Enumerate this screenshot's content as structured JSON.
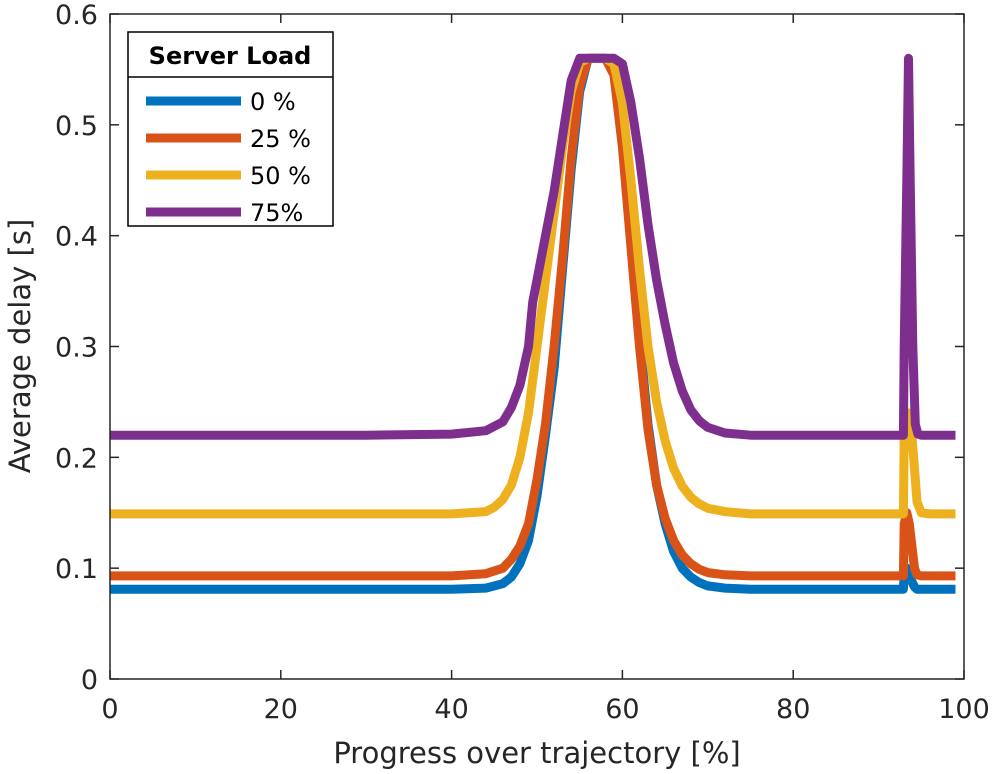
{
  "chart_data": {
    "type": "line",
    "title": "",
    "xlabel": "Progress over trajectory [%]",
    "ylabel": "Average delay [s]",
    "xlim": [
      0,
      100
    ],
    "ylim": [
      0,
      0.6
    ],
    "xticks": [
      0,
      20,
      40,
      60,
      80,
      100
    ],
    "xtick_labels": [
      "0",
      "20",
      "40",
      "60",
      "80",
      "100"
    ],
    "yticks": [
      0,
      0.1,
      0.2,
      0.3,
      0.4,
      0.5,
      0.6
    ],
    "ytick_labels": [
      "0",
      "0.1",
      "0.2",
      "0.3",
      "0.4",
      "0.5",
      "0.6"
    ],
    "grid": false,
    "legend": {
      "title": "Server Load",
      "placement": "top-left"
    },
    "series": [
      {
        "name": "0 %",
        "color": "#0072BD",
        "x": [
          0,
          10,
          20,
          30,
          40,
          44,
          46,
          47,
          48,
          49,
          50,
          51,
          52,
          53,
          54,
          55,
          56,
          57,
          58,
          59,
          60,
          61,
          62,
          63,
          64,
          65,
          66,
          67,
          68,
          69,
          70,
          72,
          75,
          80,
          85,
          90,
          92.9,
          93.0,
          93.3,
          93.6,
          93.9,
          94.2,
          94.5,
          95,
          96,
          97,
          98,
          99
        ],
        "y": [
          0.081,
          0.081,
          0.081,
          0.081,
          0.081,
          0.082,
          0.086,
          0.092,
          0.104,
          0.125,
          0.165,
          0.22,
          0.28,
          0.37,
          0.46,
          0.53,
          0.56,
          0.56,
          0.56,
          0.55,
          0.49,
          0.4,
          0.31,
          0.23,
          0.175,
          0.14,
          0.115,
          0.1,
          0.092,
          0.087,
          0.084,
          0.082,
          0.081,
          0.081,
          0.081,
          0.081,
          0.081,
          0.095,
          0.1,
          0.095,
          0.088,
          0.083,
          0.081,
          0.081,
          0.081,
          0.081,
          0.081,
          0.081
        ]
      },
      {
        "name": "25 %",
        "color": "#D95319",
        "x": [
          0,
          10,
          20,
          30,
          40,
          44,
          46,
          47,
          48,
          49,
          50,
          51,
          52,
          53,
          54,
          55,
          56,
          57,
          58,
          59,
          60,
          61,
          62,
          63,
          64,
          65,
          66,
          67,
          68,
          69,
          70,
          72,
          75,
          80,
          85,
          90,
          92.9,
          93.0,
          93.3,
          93.6,
          93.9,
          94.2,
          94.5,
          95,
          96,
          97,
          98,
          99
        ],
        "y": [
          0.093,
          0.093,
          0.093,
          0.093,
          0.093,
          0.095,
          0.1,
          0.108,
          0.12,
          0.14,
          0.18,
          0.23,
          0.3,
          0.38,
          0.47,
          0.535,
          0.56,
          0.56,
          0.56,
          0.545,
          0.48,
          0.39,
          0.3,
          0.225,
          0.175,
          0.145,
          0.125,
          0.112,
          0.104,
          0.099,
          0.096,
          0.094,
          0.093,
          0.093,
          0.093,
          0.093,
          0.093,
          0.14,
          0.15,
          0.14,
          0.12,
          0.1,
          0.094,
          0.093,
          0.093,
          0.093,
          0.093,
          0.093
        ]
      },
      {
        "name": "50 %",
        "color": "#EDB120",
        "x": [
          0,
          10,
          20,
          30,
          40,
          44,
          45,
          46,
          47,
          48,
          49,
          50,
          51,
          52,
          53,
          54,
          55,
          56,
          57,
          58,
          59,
          60,
          61,
          62,
          63,
          64,
          65,
          66,
          67,
          68,
          69,
          70,
          72,
          75,
          80,
          85,
          90,
          92.9,
          93.0,
          93.3,
          93.6,
          93.9,
          94.2,
          94.5,
          95,
          96,
          97,
          98,
          99
        ],
        "y": [
          0.149,
          0.149,
          0.149,
          0.149,
          0.149,
          0.151,
          0.155,
          0.162,
          0.175,
          0.2,
          0.24,
          0.3,
          0.36,
          0.42,
          0.48,
          0.53,
          0.556,
          0.56,
          0.56,
          0.56,
          0.555,
          0.52,
          0.45,
          0.37,
          0.3,
          0.25,
          0.215,
          0.19,
          0.174,
          0.164,
          0.158,
          0.154,
          0.151,
          0.149,
          0.149,
          0.149,
          0.149,
          0.149,
          0.22,
          0.24,
          0.24,
          0.22,
          0.19,
          0.16,
          0.15,
          0.149,
          0.149,
          0.149,
          0.149
        ]
      },
      {
        "name": "75%",
        "color": "#7E2F8E",
        "x": [
          0,
          10,
          20,
          30,
          40,
          44,
          46,
          47,
          48,
          49,
          49.5,
          50,
          51,
          52,
          53,
          54,
          55,
          56,
          57,
          58,
          59,
          60,
          61,
          62,
          63,
          64,
          65,
          66,
          67,
          68,
          69,
          70,
          72,
          75,
          80,
          85,
          90,
          92.9,
          93.0,
          93.3,
          93.5,
          93.7,
          94.0,
          94.3,
          94.6,
          95,
          96,
          97,
          98,
          99
        ],
        "y": [
          0.22,
          0.22,
          0.22,
          0.22,
          0.221,
          0.224,
          0.232,
          0.245,
          0.265,
          0.3,
          0.34,
          0.36,
          0.4,
          0.44,
          0.49,
          0.54,
          0.56,
          0.56,
          0.56,
          0.56,
          0.56,
          0.555,
          0.52,
          0.47,
          0.41,
          0.36,
          0.32,
          0.285,
          0.26,
          0.243,
          0.233,
          0.227,
          0.222,
          0.22,
          0.22,
          0.22,
          0.22,
          0.22,
          0.3,
          0.45,
          0.56,
          0.45,
          0.3,
          0.23,
          0.221,
          0.22,
          0.22,
          0.22,
          0.22,
          0.22
        ]
      }
    ]
  }
}
